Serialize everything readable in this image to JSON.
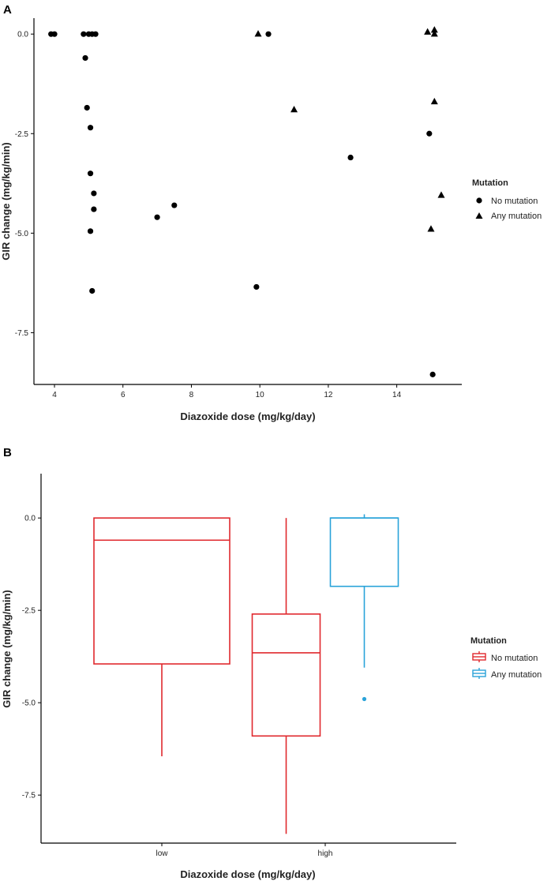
{
  "chart_data": [
    {
      "panel": "A",
      "type": "scatter",
      "xlabel": "Diazoxide dose (mg/kg/day)",
      "ylabel": "GIR change (mg/kg/min)",
      "xlim": [
        3.4,
        15.9
      ],
      "ylim": [
        -8.8,
        0.4
      ],
      "xticks": [
        4,
        6,
        8,
        10,
        12,
        14
      ],
      "yticks": [
        0.0,
        -2.5,
        -5.0,
        -7.5
      ],
      "ytick_labels": [
        "0.0",
        "-2.5",
        "-5.0",
        "-7.5"
      ],
      "legend": {
        "title": "Mutation",
        "placement": "right",
        "entries": [
          "No mutation",
          "Any mutation"
        ]
      },
      "series": [
        {
          "name": "No mutation",
          "shape": "circle",
          "points": [
            [
              3.9,
              0.0
            ],
            [
              4.0,
              0.0
            ],
            [
              4.85,
              0.0
            ],
            [
              5.0,
              0.0
            ],
            [
              5.1,
              0.0
            ],
            [
              5.2,
              0.0
            ],
            [
              4.9,
              -0.6
            ],
            [
              4.95,
              -1.85
            ],
            [
              5.05,
              -2.35
            ],
            [
              5.05,
              -3.5
            ],
            [
              5.15,
              -4.0
            ],
            [
              5.15,
              -4.4
            ],
            [
              5.05,
              -4.95
            ],
            [
              5.1,
              -6.45
            ],
            [
              7.0,
              -4.6
            ],
            [
              7.5,
              -4.3
            ],
            [
              9.9,
              -6.35
            ],
            [
              10.25,
              0.0
            ],
            [
              12.65,
              -3.1
            ],
            [
              14.95,
              -2.5
            ],
            [
              15.05,
              -8.55
            ]
          ]
        },
        {
          "name": "Any mutation",
          "shape": "triangle",
          "points": [
            [
              9.95,
              0.0
            ],
            [
              11.0,
              -1.9
            ],
            [
              14.9,
              0.05
            ],
            [
              15.1,
              0.1
            ],
            [
              15.1,
              0.0
            ],
            [
              15.1,
              -1.7
            ],
            [
              15.3,
              -4.05
            ],
            [
              15.0,
              -4.9
            ]
          ]
        }
      ]
    },
    {
      "panel": "B",
      "type": "box",
      "xlabel": "Diazoxide dose (mg/kg/day)",
      "ylabel": "GIR change (mg/kg/min)",
      "categories": [
        "low",
        "high"
      ],
      "ylim": [
        -8.8,
        1.2
      ],
      "yticks": [
        0.0,
        -2.5,
        -5.0,
        -7.5
      ],
      "ytick_labels": [
        "0.0",
        "-2.5",
        "-5.0",
        "-7.5"
      ],
      "legend": {
        "title": "Mutation",
        "placement": "right",
        "entries": [
          "No mutation",
          "Any mutation"
        ]
      },
      "series": [
        {
          "name": "No mutation",
          "color": "#e0292e",
          "boxes": [
            {
              "category": "low",
              "min": -6.45,
              "q1": -3.95,
              "median": -0.6,
              "q3": 0.0,
              "max": 0.0,
              "outliers": []
            },
            {
              "category": "high",
              "min": -8.55,
              "q1": -5.9,
              "median": -3.65,
              "q3": -2.6,
              "max": 0.0,
              "outliers": []
            }
          ]
        },
        {
          "name": "Any mutation",
          "color": "#2aa3d9",
          "boxes": [
            {
              "category": "high",
              "min": -4.05,
              "q1": -1.85,
              "median": 0.0,
              "q3": 0.0,
              "max": 0.1,
              "outliers": [
                -4.9
              ]
            }
          ]
        }
      ]
    }
  ]
}
